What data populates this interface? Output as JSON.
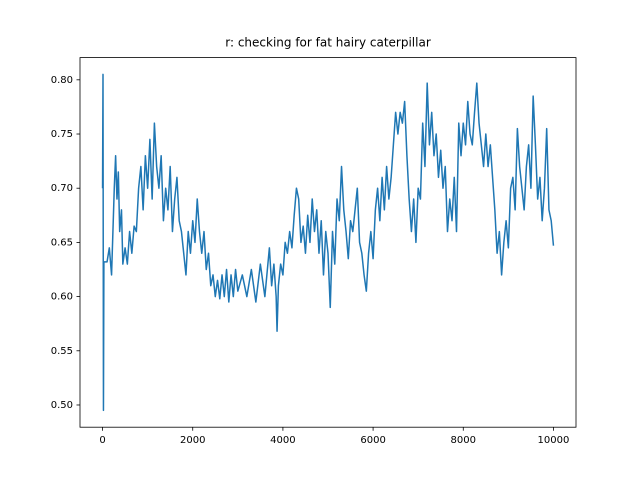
{
  "chart_data": {
    "type": "line",
    "title": "r: checking for fat hairy caterpillar",
    "color": "#1f77b4",
    "xlim": [
      -500,
      10500
    ],
    "ylim": [
      0.4795,
      0.8205
    ],
    "xticks": [
      0,
      2000,
      4000,
      6000,
      8000,
      10000
    ],
    "yticks": [
      {
        "value": 0.5,
        "label": "0.50"
      },
      {
        "value": 0.55,
        "label": "0.55"
      },
      {
        "value": 0.6,
        "label": "0.60"
      },
      {
        "value": 0.65,
        "label": "0.65"
      },
      {
        "value": 0.7,
        "label": "0.70"
      },
      {
        "value": 0.75,
        "label": "0.75"
      },
      {
        "value": 0.8,
        "label": "0.80"
      }
    ],
    "x": [
      0,
      10,
      20,
      30,
      100,
      150,
      200,
      230,
      260,
      290,
      320,
      350,
      380,
      420,
      450,
      500,
      550,
      600,
      650,
      700,
      750,
      800,
      850,
      900,
      950,
      1000,
      1050,
      1100,
      1150,
      1200,
      1250,
      1300,
      1350,
      1400,
      1450,
      1500,
      1550,
      1600,
      1650,
      1700,
      1750,
      1800,
      1850,
      1900,
      1950,
      2000,
      2050,
      2100,
      2150,
      2200,
      2250,
      2300,
      2350,
      2400,
      2450,
      2500,
      2550,
      2600,
      2650,
      2700,
      2750,
      2800,
      2850,
      2900,
      2950,
      3000,
      3100,
      3200,
      3300,
      3400,
      3500,
      3600,
      3700,
      3750,
      3800,
      3850,
      3870,
      3900,
      3950,
      4000,
      4050,
      4100,
      4150,
      4200,
      4250,
      4300,
      4350,
      4400,
      4450,
      4500,
      4550,
      4600,
      4650,
      4700,
      4750,
      4800,
      4850,
      4900,
      4950,
      5000,
      5050,
      5100,
      5150,
      5200,
      5250,
      5300,
      5350,
      5400,
      5450,
      5500,
      5550,
      5600,
      5650,
      5700,
      5750,
      5800,
      5850,
      5900,
      5950,
      6000,
      6050,
      6100,
      6150,
      6200,
      6250,
      6300,
      6350,
      6400,
      6450,
      6500,
      6550,
      6600,
      6650,
      6700,
      6750,
      6800,
      6850,
      6900,
      6950,
      7000,
      7050,
      7100,
      7150,
      7200,
      7250,
      7300,
      7350,
      7400,
      7450,
      7500,
      7550,
      7600,
      7650,
      7700,
      7750,
      7800,
      7850,
      7900,
      7950,
      8000,
      8050,
      8100,
      8150,
      8200,
      8250,
      8300,
      8350,
      8400,
      8450,
      8500,
      8550,
      8600,
      8650,
      8700,
      8750,
      8800,
      8850,
      8900,
      8950,
      9000,
      9050,
      9100,
      9150,
      9200,
      9250,
      9300,
      9350,
      9400,
      9450,
      9500,
      9550,
      9600,
      9650,
      9700,
      9750,
      9800,
      9850,
      9900,
      9950,
      10000
    ],
    "values": [
      0.7,
      0.805,
      0.495,
      0.632,
      0.632,
      0.645,
      0.62,
      0.66,
      0.7,
      0.73,
      0.69,
      0.715,
      0.66,
      0.68,
      0.63,
      0.645,
      0.63,
      0.66,
      0.64,
      0.665,
      0.66,
      0.7,
      0.72,
      0.68,
      0.73,
      0.7,
      0.745,
      0.69,
      0.76,
      0.72,
      0.7,
      0.73,
      0.67,
      0.7,
      0.68,
      0.72,
      0.66,
      0.69,
      0.71,
      0.67,
      0.66,
      0.64,
      0.62,
      0.66,
      0.64,
      0.67,
      0.65,
      0.69,
      0.66,
      0.64,
      0.66,
      0.625,
      0.64,
      0.61,
      0.62,
      0.6,
      0.615,
      0.598,
      0.62,
      0.6,
      0.625,
      0.595,
      0.62,
      0.6,
      0.625,
      0.605,
      0.62,
      0.6,
      0.625,
      0.595,
      0.63,
      0.6,
      0.645,
      0.61,
      0.63,
      0.6,
      0.568,
      0.61,
      0.63,
      0.62,
      0.65,
      0.64,
      0.66,
      0.645,
      0.675,
      0.7,
      0.69,
      0.65,
      0.665,
      0.64,
      0.675,
      0.65,
      0.69,
      0.66,
      0.68,
      0.64,
      0.67,
      0.62,
      0.66,
      0.64,
      0.59,
      0.66,
      0.63,
      0.69,
      0.67,
      0.72,
      0.68,
      0.66,
      0.635,
      0.67,
      0.66,
      0.68,
      0.7,
      0.65,
      0.64,
      0.62,
      0.605,
      0.64,
      0.66,
      0.635,
      0.68,
      0.7,
      0.67,
      0.71,
      0.68,
      0.72,
      0.69,
      0.71,
      0.74,
      0.77,
      0.75,
      0.77,
      0.76,
      0.78,
      0.73,
      0.69,
      0.66,
      0.69,
      0.65,
      0.7,
      0.69,
      0.76,
      0.72,
      0.797,
      0.74,
      0.77,
      0.73,
      0.75,
      0.71,
      0.735,
      0.7,
      0.72,
      0.66,
      0.69,
      0.67,
      0.71,
      0.66,
      0.76,
      0.73,
      0.76,
      0.74,
      0.78,
      0.75,
      0.74,
      0.77,
      0.797,
      0.76,
      0.74,
      0.72,
      0.75,
      0.72,
      0.74,
      0.71,
      0.68,
      0.64,
      0.66,
      0.62,
      0.65,
      0.67,
      0.645,
      0.7,
      0.71,
      0.68,
      0.755,
      0.72,
      0.7,
      0.68,
      0.72,
      0.74,
      0.7,
      0.785,
      0.74,
      0.69,
      0.71,
      0.67,
      0.7,
      0.755,
      0.68,
      0.67,
      0.647
    ]
  }
}
